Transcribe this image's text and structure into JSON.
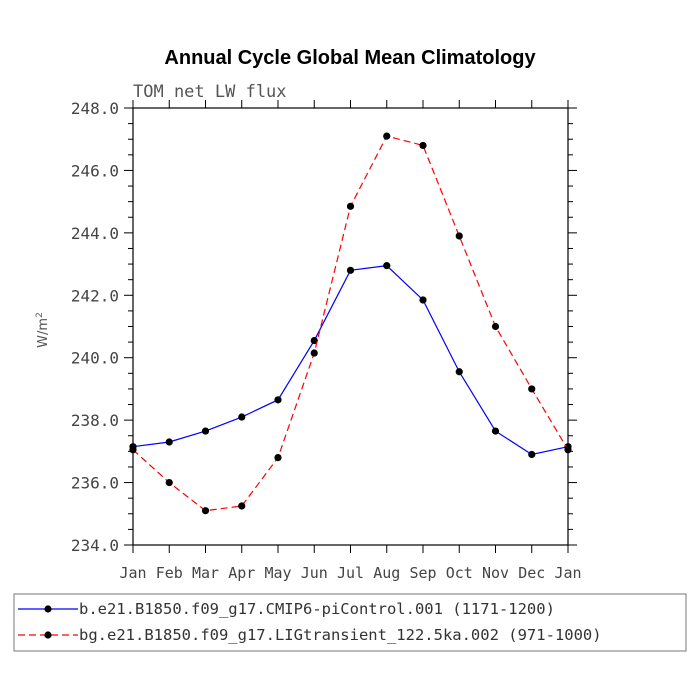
{
  "chart_data": {
    "type": "line",
    "title": "Annual Cycle Global Mean Climatology",
    "subtitle": "TOM net LW flux",
    "ylabel": "W/m",
    "ylabel_superscript": "2",
    "ylim": [
      234.0,
      248.0
    ],
    "yticks": [
      "234.0",
      "236.0",
      "238.0",
      "240.0",
      "242.0",
      "244.0",
      "246.0",
      "248.0"
    ],
    "categories": [
      "Jan",
      "Feb",
      "Mar",
      "Apr",
      "May",
      "Jun",
      "Jul",
      "Aug",
      "Sep",
      "Oct",
      "Nov",
      "Dec",
      "Jan"
    ],
    "grid": false,
    "legend_position": "bottom",
    "series": [
      {
        "name": "b.e21.B1850.f09_g17.CMIP6-piControl.001 (1171-1200)",
        "color": "#0000ff",
        "dash": "solid",
        "marker": "filled-circle",
        "values": [
          237.15,
          237.3,
          237.65,
          238.1,
          238.65,
          240.55,
          242.8,
          242.95,
          241.85,
          239.55,
          237.65,
          236.9,
          237.15
        ]
      },
      {
        "name": "bg.e21.B1850.f09_g17.LIGtransient_122.5ka.002 (971-1000)",
        "color": "#ff0000",
        "dash": "dashed",
        "marker": "filled-circle",
        "values": [
          237.05,
          236.0,
          235.1,
          235.25,
          236.8,
          240.15,
          244.85,
          247.1,
          246.8,
          243.9,
          241.0,
          239.0,
          237.05
        ]
      }
    ]
  }
}
